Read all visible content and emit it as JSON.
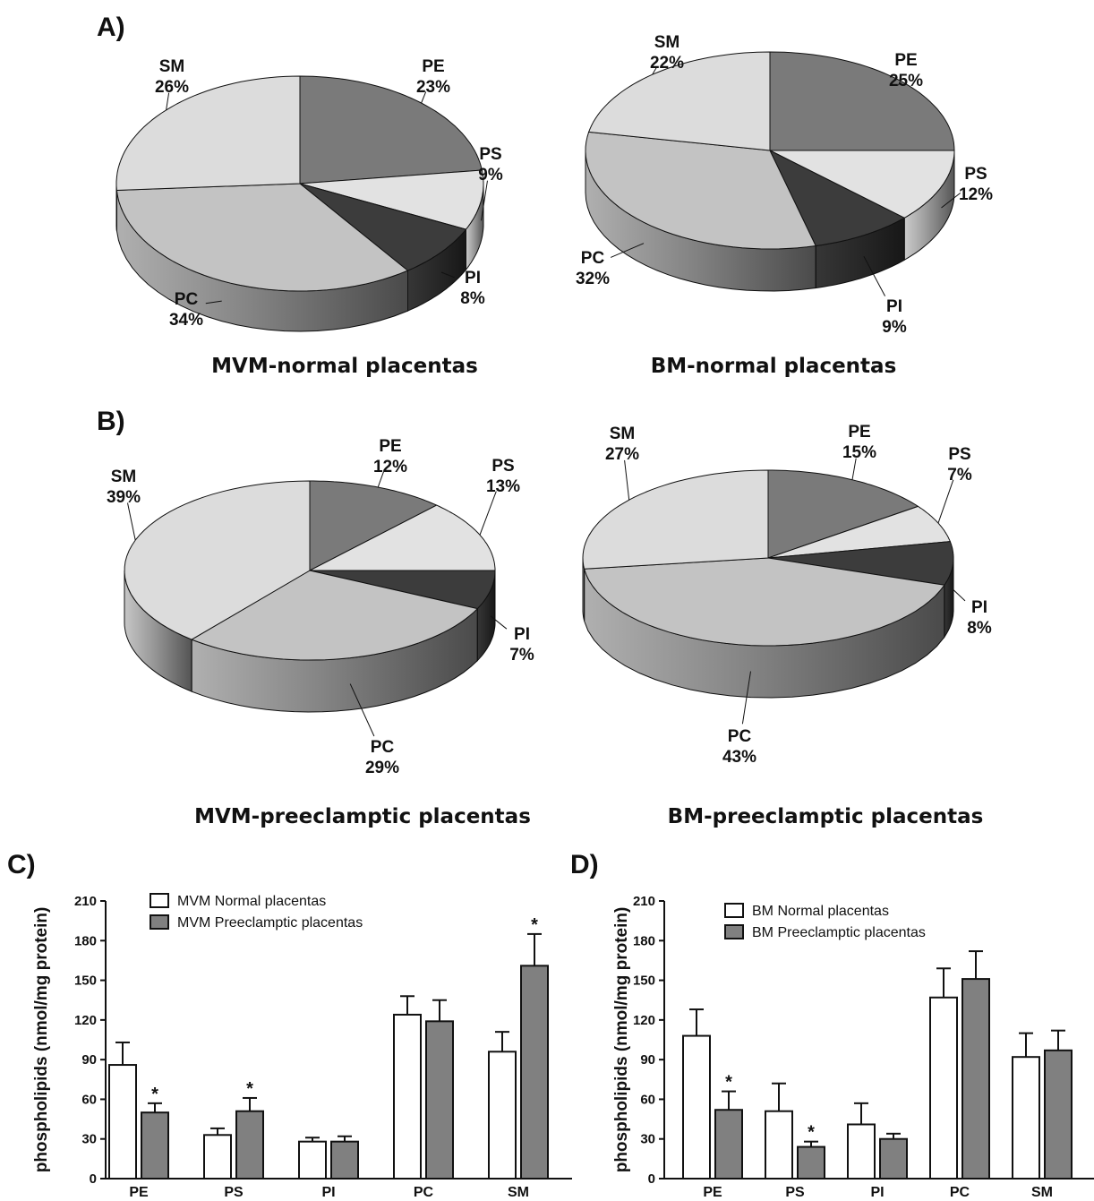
{
  "colors": {
    "PE": "#7a7a7a",
    "PS": "#e2e2e2",
    "PI": "#3c3c3c",
    "PC": "#c3c3c3",
    "SM": "#dcdcdc",
    "normal_bar": "#ffffff",
    "preeclamptic_bar": "#808080",
    "ink": "#111111"
  },
  "chart_data": [
    {
      "panel": "A)",
      "type": "pie",
      "title": "MVM-normal placentas",
      "slices": [
        {
          "label": "PE",
          "value": 23,
          "text": "23%"
        },
        {
          "label": "PS",
          "value": 9,
          "text": "9%"
        },
        {
          "label": "PI",
          "value": 8,
          "text": "8%"
        },
        {
          "label": "PC",
          "value": 34,
          "text": "34%"
        },
        {
          "label": "SM",
          "value": 26,
          "text": "26%"
        }
      ]
    },
    {
      "panel": "",
      "type": "pie",
      "title": "BM-normal placentas",
      "slices": [
        {
          "label": "PE",
          "value": 25,
          "text": "25%"
        },
        {
          "label": "PS",
          "value": 12,
          "text": "12%"
        },
        {
          "label": "PI",
          "value": 9,
          "text": "9%"
        },
        {
          "label": "PC",
          "value": 32,
          "text": "32%"
        },
        {
          "label": "SM",
          "value": 22,
          "text": "22%"
        }
      ]
    },
    {
      "panel": "B)",
      "type": "pie",
      "title": "MVM-preeclamptic placentas",
      "slices": [
        {
          "label": "PE",
          "value": 12,
          "text": "12%"
        },
        {
          "label": "PS",
          "value": 13,
          "text": "13%"
        },
        {
          "label": "PI",
          "value": 7,
          "text": "7%"
        },
        {
          "label": "PC",
          "value": 29,
          "text": "29%"
        },
        {
          "label": "SM",
          "value": 39,
          "text": "39%"
        }
      ]
    },
    {
      "panel": "",
      "type": "pie",
      "title": "BM-preeclamptic placentas",
      "slices": [
        {
          "label": "PE",
          "value": 15,
          "text": "15%"
        },
        {
          "label": "PS",
          "value": 7,
          "text": "7%"
        },
        {
          "label": "PI",
          "value": 8,
          "text": "8%"
        },
        {
          "label": "PC",
          "value": 43,
          "text": "43%"
        },
        {
          "label": "SM",
          "value": 27,
          "text": "27%"
        }
      ]
    },
    {
      "panel": "C)",
      "type": "bar",
      "ylabel": "phospholipids (nmol/mg protein)",
      "ylim": [
        0,
        210
      ],
      "yticks": [
        0,
        30,
        60,
        90,
        120,
        150,
        180,
        210
      ],
      "categories": [
        "PE",
        "PS",
        "PI",
        "PC",
        "SM"
      ],
      "legend_position": "top-left",
      "series": [
        {
          "name": "MVM Normal placentas",
          "values": [
            86,
            33,
            28,
            124,
            96
          ],
          "errors": [
            17,
            5,
            3,
            14,
            15
          ],
          "significant": [
            false,
            false,
            false,
            false,
            false
          ]
        },
        {
          "name": "MVM Preeclamptic placentas",
          "values": [
            50,
            51,
            28,
            119,
            161
          ],
          "errors": [
            7,
            10,
            4,
            16,
            24
          ],
          "significant": [
            true,
            true,
            false,
            false,
            true
          ]
        }
      ]
    },
    {
      "panel": "D)",
      "type": "bar",
      "ylabel": "phospholipids (nmol/mg protein)",
      "ylim": [
        0,
        210
      ],
      "yticks": [
        0,
        30,
        60,
        90,
        120,
        150,
        180,
        210
      ],
      "categories": [
        "PE",
        "PS",
        "PI",
        "PC",
        "SM"
      ],
      "legend_position": "top-left",
      "series": [
        {
          "name": "BM Normal placentas",
          "values": [
            108,
            51,
            41,
            137,
            92
          ],
          "errors": [
            20,
            21,
            16,
            22,
            18
          ],
          "significant": [
            false,
            false,
            false,
            false,
            false
          ]
        },
        {
          "name": "BM Preeclamptic placentas",
          "values": [
            52,
            24,
            30,
            151,
            97
          ],
          "errors": [
            14,
            4,
            4,
            21,
            15
          ],
          "significant": [
            true,
            true,
            false,
            false,
            false
          ]
        }
      ]
    }
  ]
}
